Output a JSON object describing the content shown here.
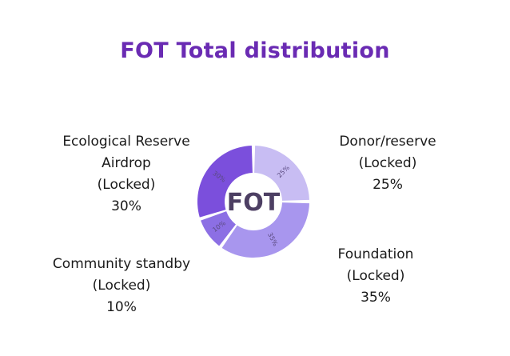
{
  "title": "FOT Total distribution",
  "colors": {
    "title": "#6a2bb3",
    "slices": [
      "#c8bdf3",
      "#a896ee",
      "#8c6fe4",
      "#7b4fdc"
    ],
    "center_text": "#4d3f63"
  },
  "labels": {
    "ecological": [
      "Ecological Reserve",
      "Airdrop",
      "(Locked)",
      "30%"
    ],
    "donor": [
      "Donor/reserve",
      "(Locked)",
      "25%"
    ],
    "foundation": [
      "Foundation",
      "(Locked)",
      "35%"
    ],
    "community": [
      "Community standby",
      "(Locked)",
      "10%"
    ]
  },
  "chart_data": {
    "type": "pie",
    "donut": true,
    "center_label": "FOT",
    "slices": [
      {
        "label": "Donor/reserve (Locked)",
        "value": 25,
        "data_label": "25%"
      },
      {
        "label": "Foundation (Locked)",
        "value": 35,
        "data_label": "35%"
      },
      {
        "label": "Community standby (Locked)",
        "value": 10,
        "data_label": "10%"
      },
      {
        "label": "Ecological Reserve Airdrop (Locked)",
        "value": 30,
        "data_label": "30%"
      }
    ]
  }
}
